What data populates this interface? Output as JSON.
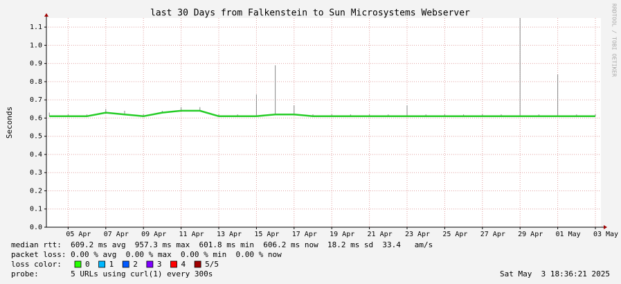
{
  "chart_data": {
    "type": "line",
    "title": "last 30 Days from Falkenstein to Sun Microsystems Webserver",
    "y_label": "Seconds",
    "side_label": "RRDTOOL / TOBI OETIKER",
    "x": [
      "2025-04-04",
      "2025-04-05",
      "2025-04-06",
      "2025-04-07",
      "2025-04-08",
      "2025-04-09",
      "2025-04-10",
      "2025-04-11",
      "2025-04-12",
      "2025-04-13",
      "2025-04-14",
      "2025-04-15",
      "2025-04-16",
      "2025-04-17",
      "2025-04-18",
      "2025-04-19",
      "2025-04-20",
      "2025-04-21",
      "2025-04-22",
      "2025-04-23",
      "2025-04-24",
      "2025-04-25",
      "2025-04-26",
      "2025-04-27",
      "2025-04-28",
      "2025-04-29",
      "2025-04-30",
      "2025-05-01",
      "2025-05-02",
      "2025-05-03"
    ],
    "series": [
      {
        "color": "#26cc26",
        "values": [
          0.61,
          0.61,
          0.61,
          0.63,
          0.62,
          0.61,
          0.63,
          0.64,
          0.64,
          0.61,
          0.61,
          0.61,
          0.62,
          0.62,
          0.61,
          0.61,
          0.61,
          0.61,
          0.61,
          0.61,
          0.61,
          0.61,
          0.61,
          0.61,
          0.61,
          0.61,
          0.61,
          0.61,
          0.61,
          0.61
        ]
      },
      {
        "color": "#888888",
        "values": [
          0.63,
          0.62,
          0.62,
          0.65,
          0.64,
          0.62,
          0.64,
          0.66,
          0.66,
          0.62,
          0.62,
          0.73,
          0.89,
          0.67,
          0.62,
          0.62,
          0.62,
          0.62,
          0.62,
          0.67,
          0.62,
          0.62,
          0.62,
          0.62,
          0.62,
          1.15,
          0.62,
          0.84,
          0.62,
          0.62
        ]
      }
    ],
    "xlim": [
      "2025-04-03",
      "2025-05-03"
    ],
    "xticks": [
      {
        "value": "2025-04-05",
        "label": "05 Apr"
      },
      {
        "value": "2025-04-07",
        "label": "07 Apr"
      },
      {
        "value": "2025-04-09",
        "label": "09 Apr"
      },
      {
        "value": "2025-04-11",
        "label": "11 Apr"
      },
      {
        "value": "2025-04-13",
        "label": "13 Apr"
      },
      {
        "value": "2025-04-15",
        "label": "15 Apr"
      },
      {
        "value": "2025-04-17",
        "label": "17 Apr"
      },
      {
        "value": "2025-04-19",
        "label": "19 Apr"
      },
      {
        "value": "2025-04-21",
        "label": "21 Apr"
      },
      {
        "value": "2025-04-23",
        "label": "23 Apr"
      },
      {
        "value": "2025-04-25",
        "label": "25 Apr"
      },
      {
        "value": "2025-04-27",
        "label": "27 Apr"
      },
      {
        "value": "2025-04-29",
        "label": "29 Apr"
      },
      {
        "value": "2025-05-01",
        "label": "01 May"
      },
      {
        "value": "2025-05-03",
        "label": "03 May"
      }
    ],
    "ylim": [
      0,
      1.15
    ],
    "yticks": [
      {
        "value": 0,
        "label": "0.0"
      },
      0.1,
      0.2,
      0.3,
      0.4,
      0.5,
      0.6,
      0.7,
      0.8,
      0.9,
      {
        "value": 1,
        "label": "1.0"
      },
      1.1
    ],
    "grid": true,
    "stats": [
      "median rtt:  609.2 ms avg  957.3 ms max  601.8 ms min  606.2 ms now  18.2 ms sd  33.4   am/s",
      "packet loss: 0.00 % avg  0.00 % max  0.00 % min  0.00 % now"
    ],
    "loss_label": "loss color:",
    "loss_colors": [
      {
        "label": "0",
        "color": "#26ff00"
      },
      {
        "label": "1",
        "color": "#00b8ff"
      },
      {
        "label": "2",
        "color": "#0059ff"
      },
      {
        "label": "3",
        "color": "#7e00ff"
      },
      {
        "label": "4",
        "color": "#ff0000"
      },
      {
        "label": "5/5",
        "color": "#a10000"
      }
    ],
    "probe": "probe:       5 URLs using curl(1) every 300s",
    "timestamp": "Sat May  3 18:36:21 2025"
  }
}
